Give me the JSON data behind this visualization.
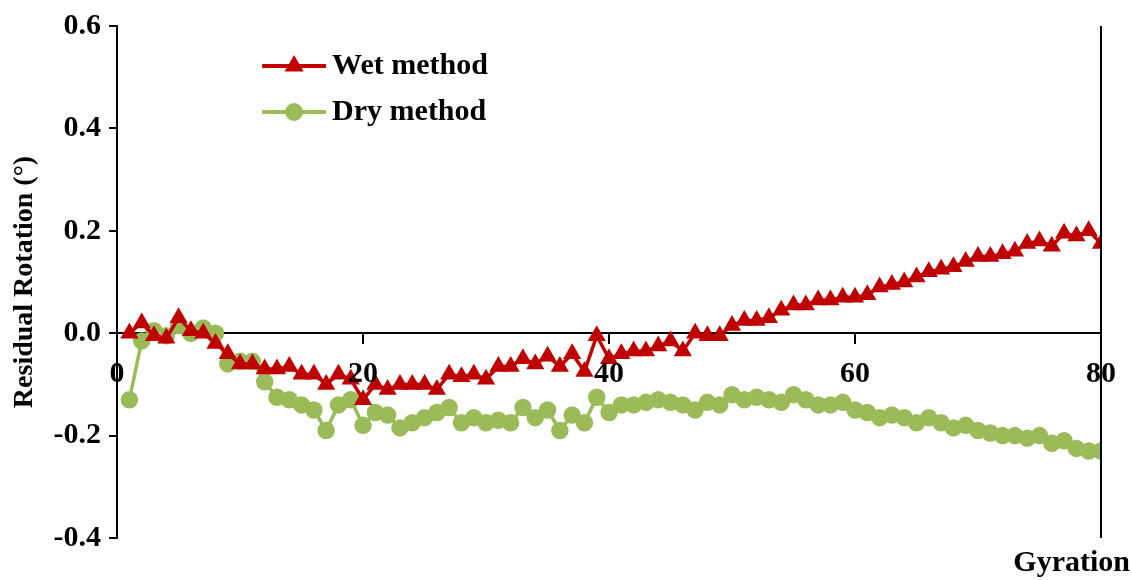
{
  "chart_data": {
    "type": "line",
    "xlabel": "Gyration",
    "ylabel": "Residual Rotation (°)",
    "x": [
      1,
      2,
      3,
      4,
      5,
      6,
      7,
      8,
      9,
      10,
      11,
      12,
      13,
      14,
      15,
      16,
      17,
      18,
      19,
      20,
      21,
      22,
      23,
      24,
      25,
      26,
      27,
      28,
      29,
      30,
      31,
      32,
      33,
      34,
      35,
      36,
      37,
      38,
      39,
      40,
      41,
      42,
      43,
      44,
      45,
      46,
      47,
      48,
      49,
      50,
      51,
      52,
      53,
      54,
      55,
      56,
      57,
      58,
      59,
      60,
      61,
      62,
      63,
      64,
      65,
      66,
      67,
      68,
      69,
      70,
      71,
      72,
      73,
      74,
      75,
      76,
      77,
      78,
      79,
      80
    ],
    "series": [
      {
        "name": "Wet method",
        "color": "#c00000",
        "marker": "triangle",
        "values": [
          0,
          0.02,
          -0.005,
          -0.01,
          0.03,
          0.005,
          0,
          -0.02,
          -0.04,
          -0.06,
          -0.06,
          -0.07,
          -0.07,
          -0.065,
          -0.08,
          -0.08,
          -0.1,
          -0.08,
          -0.09,
          -0.13,
          -0.1,
          -0.11,
          -0.1,
          -0.1,
          -0.1,
          -0.11,
          -0.08,
          -0.085,
          -0.08,
          -0.09,
          -0.065,
          -0.065,
          -0.05,
          -0.06,
          -0.045,
          -0.065,
          -0.04,
          -0.075,
          -0.005,
          -0.05,
          -0.04,
          -0.035,
          -0.035,
          -0.025,
          -0.015,
          -0.035,
          0,
          -0.005,
          -0.005,
          0.015,
          0.025,
          0.025,
          0.03,
          0.045,
          0.055,
          0.055,
          0.065,
          0.065,
          0.07,
          0.07,
          0.075,
          0.09,
          0.095,
          0.1,
          0.11,
          0.12,
          0.125,
          0.13,
          0.14,
          0.15,
          0.15,
          0.155,
          0.16,
          0.175,
          0.18,
          0.17,
          0.195,
          0.19,
          0.2,
          0.175
        ]
      },
      {
        "name": "Dry method",
        "color": "#9bbb59",
        "marker": "circle",
        "values": [
          -0.13,
          -0.015,
          0.005,
          -0.005,
          0.015,
          0,
          0.01,
          0,
          -0.06,
          -0.055,
          -0.055,
          -0.095,
          -0.125,
          -0.13,
          -0.14,
          -0.15,
          -0.19,
          -0.14,
          -0.13,
          -0.18,
          -0.155,
          -0.16,
          -0.185,
          -0.175,
          -0.165,
          -0.155,
          -0.145,
          -0.175,
          -0.165,
          -0.175,
          -0.17,
          -0.175,
          -0.145,
          -0.165,
          -0.15,
          -0.19,
          -0.16,
          -0.175,
          -0.125,
          -0.155,
          -0.14,
          -0.14,
          -0.135,
          -0.13,
          -0.135,
          -0.14,
          -0.15,
          -0.135,
          -0.14,
          -0.12,
          -0.13,
          -0.125,
          -0.13,
          -0.135,
          -0.12,
          -0.13,
          -0.14,
          -0.14,
          -0.135,
          -0.15,
          -0.155,
          -0.165,
          -0.16,
          -0.165,
          -0.175,
          -0.165,
          -0.175,
          -0.185,
          -0.18,
          -0.19,
          -0.195,
          -0.2,
          -0.2,
          -0.205,
          -0.2,
          -0.215,
          -0.21,
          -0.225,
          -0.23,
          -0.23
        ]
      }
    ],
    "xlim": [
      0,
      80
    ],
    "xticks": [
      0,
      20,
      40,
      60,
      80
    ],
    "ylim": [
      -0.4,
      0.6
    ],
    "yticks": [
      {
        "value": -0.4,
        "label": "-0.4"
      },
      {
        "value": -0.2,
        "label": "-0.2"
      },
      {
        "value": 0,
        "label": "0.0"
      },
      {
        "value": 0.2,
        "label": "0.2"
      },
      {
        "value": 0.4,
        "label": "0.4"
      },
      {
        "value": 0.6,
        "label": "0.6"
      }
    ],
    "grid": false,
    "legend": "top left",
    "line_style": "solid"
  }
}
